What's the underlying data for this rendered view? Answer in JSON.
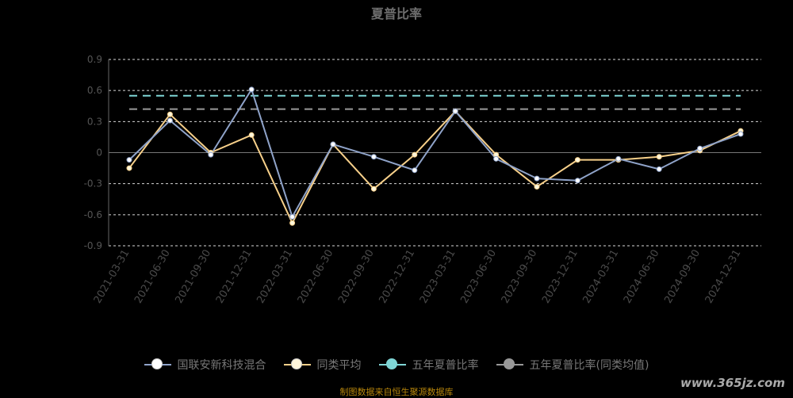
{
  "chart_data": {
    "type": "line",
    "title": "夏普比率",
    "categories": [
      "2021-03-31",
      "2021-06-30",
      "2021-09-30",
      "2021-12-31",
      "2022-03-31",
      "2022-06-30",
      "2022-09-30",
      "2022-12-31",
      "2023-03-31",
      "2023-06-30",
      "2023-09-30",
      "2023-12-31",
      "2024-03-31",
      "2024-06-30",
      "2024-09-30",
      "2024-12-31"
    ],
    "yticks": [
      "0.9",
      "0.6",
      "0.3",
      "0",
      "-0.3",
      "-0.6",
      "-0.9"
    ],
    "ylim": [
      -0.9,
      0.9
    ],
    "series": [
      {
        "name": "国联安新科技混合",
        "color": "#8fa3c9",
        "values": [
          -0.07,
          0.31,
          -0.02,
          0.61,
          -0.62,
          0.08,
          -0.04,
          -0.17,
          0.4,
          -0.06,
          -0.25,
          -0.27,
          -0.06,
          -0.16,
          0.04,
          0.18
        ]
      },
      {
        "name": "同类平均",
        "color": "#f7d08a",
        "values": [
          -0.15,
          0.37,
          0.0,
          0.17,
          -0.68,
          0.08,
          -0.35,
          -0.02,
          0.4,
          -0.02,
          -0.33,
          -0.07,
          -0.07,
          -0.04,
          0.02,
          0.21
        ]
      },
      {
        "name": "五年夏普比率",
        "color": "#7fd6d6",
        "value": 0.55
      },
      {
        "name": "五年夏普比率(同类均值)",
        "color": "#999999",
        "value": 0.42
      }
    ],
    "grid": true,
    "legend": "bottom"
  },
  "source": "制图数据来自恒生聚源数据库",
  "watermark": "www.365jz.com"
}
